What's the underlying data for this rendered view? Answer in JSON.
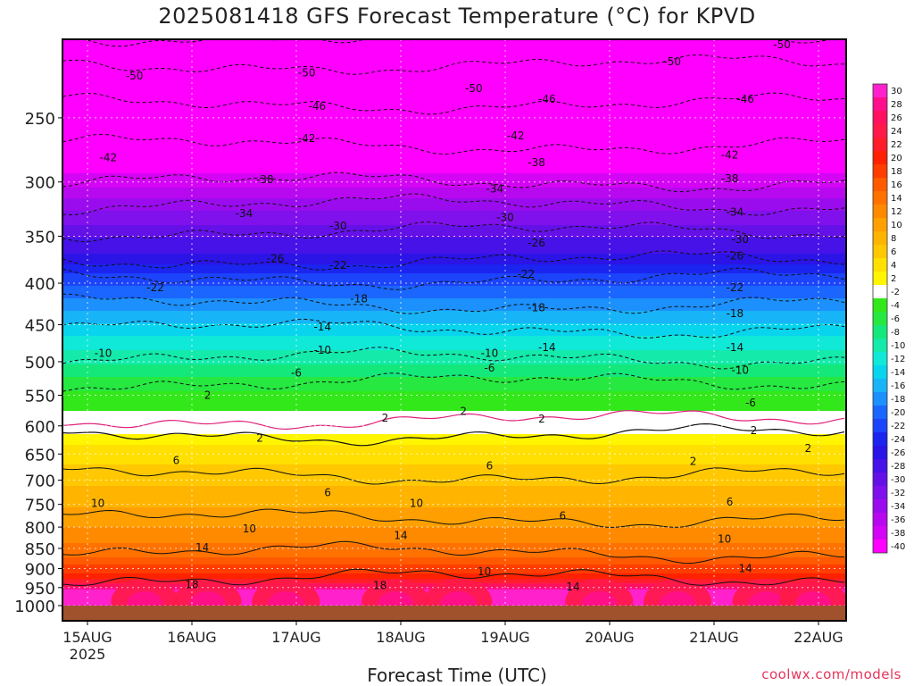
{
  "title": "2025081418 GFS Forecast Temperature (°C) for KPVD",
  "xlabel": "Forecast Time (UTC)",
  "credit": "coolwx.com/models",
  "chart_data": {
    "type": "heatmap",
    "title": "2025081418 GFS Forecast Temperature (°C) for KPVD",
    "xlabel": "Forecast Time (UTC)",
    "ylabel": "",
    "y_axis_scale": "log-pressure, inverted",
    "ylim": [
      1000,
      200
    ],
    "y_ticks": [
      250,
      300,
      350,
      400,
      450,
      500,
      550,
      600,
      650,
      700,
      750,
      800,
      850,
      900,
      950,
      1000
    ],
    "x_ticks": [
      "15AUG",
      "16AUG",
      "17AUG",
      "18AUG",
      "19AUG",
      "20AUG",
      "21AUG",
      "22AUG"
    ],
    "x_tick_sublabel": "2025",
    "grid": true,
    "colorbar_labels": [
      30,
      28,
      26,
      24,
      22,
      20,
      18,
      16,
      14,
      12,
      10,
      8,
      6,
      4,
      2,
      -2,
      -4,
      -6,
      -8,
      -10,
      -12,
      -14,
      -16,
      -18,
      -20,
      -22,
      -24,
      -26,
      -28,
      -30,
      -32,
      -34,
      -36,
      -38,
      -40
    ],
    "colorbar_colors": [
      "#ff22cc",
      "#ff0f8c",
      "#ff115f",
      "#ff1a49",
      "#ff1d2a",
      "#ff2200",
      "#ff3d00",
      "#ff5a00",
      "#ff7200",
      "#ff8a00",
      "#ffa000",
      "#ffb400",
      "#ffc800",
      "#ffe000",
      "#fff500",
      "#ffffff",
      "#33e81a",
      "#26e840",
      "#14e87a",
      "#14eaaa",
      "#10e8d8",
      "#08d4ee",
      "#18b4f8",
      "#1c90fc",
      "#1a66ff",
      "#1c44fa",
      "#1c24f0",
      "#2a14e6",
      "#4612e8",
      "#6411e8",
      "#8010ec",
      "#9a0cee",
      "#b808f0",
      "#d404f4",
      "#ff00ff"
    ],
    "isotherm_profile": [
      {
        "t": 30,
        "p": 960
      },
      {
        "t": 20,
        "p": 925
      },
      {
        "t": 14,
        "p": 860
      },
      {
        "t": 10,
        "p": 780
      },
      {
        "t": 6,
        "p": 690
      },
      {
        "t": 2,
        "p": 615
      },
      {
        "t": -2,
        "p": 590
      },
      {
        "t": -6,
        "p": 530
      },
      {
        "t": -10,
        "p": 495
      },
      {
        "t": -14,
        "p": 455
      },
      {
        "t": -18,
        "p": 425
      },
      {
        "t": -22,
        "p": 395
      },
      {
        "t": -26,
        "p": 375
      },
      {
        "t": -30,
        "p": 345
      },
      {
        "t": -34,
        "p": 320
      },
      {
        "t": -38,
        "p": 300
      },
      {
        "t": -42,
        "p": 270
      },
      {
        "t": -46,
        "p": 240
      },
      {
        "t": -50,
        "p": 215
      },
      {
        "t": -54,
        "p": 198
      }
    ],
    "contour_labels": [
      {
        "v": "-50",
        "day": 0.45,
        "p": 222
      },
      {
        "v": "-50",
        "day": 2.1,
        "p": 220
      },
      {
        "v": "-50",
        "day": 3.7,
        "p": 230
      },
      {
        "v": "-50",
        "day": 5.6,
        "p": 213
      },
      {
        "v": "-50",
        "day": 6.65,
        "p": 203
      },
      {
        "v": "-46",
        "day": 2.2,
        "p": 242
      },
      {
        "v": "-46",
        "day": 4.4,
        "p": 237
      },
      {
        "v": "-46",
        "day": 6.3,
        "p": 237
      },
      {
        "v": "-42",
        "day": 0.2,
        "p": 280
      },
      {
        "v": "-42",
        "day": 2.1,
        "p": 265
      },
      {
        "v": "-42",
        "day": 4.1,
        "p": 263
      },
      {
        "v": "-42",
        "day": 6.15,
        "p": 278
      },
      {
        "v": "-38",
        "day": 1.7,
        "p": 298
      },
      {
        "v": "-38",
        "day": 4.3,
        "p": 284
      },
      {
        "v": "-38",
        "day": 6.15,
        "p": 297
      },
      {
        "v": "-34",
        "day": 1.5,
        "p": 328
      },
      {
        "v": "-34",
        "day": 3.9,
        "p": 306
      },
      {
        "v": "-34",
        "day": 6.2,
        "p": 327
      },
      {
        "v": "-30",
        "day": 2.4,
        "p": 340
      },
      {
        "v": "-30",
        "day": 4.0,
        "p": 332
      },
      {
        "v": "-30",
        "day": 6.25,
        "p": 353
      },
      {
        "v": "-26",
        "day": 1.8,
        "p": 373
      },
      {
        "v": "-26",
        "day": 4.3,
        "p": 357
      },
      {
        "v": "-26",
        "day": 6.2,
        "p": 370
      },
      {
        "v": "-22",
        "day": 0.65,
        "p": 405
      },
      {
        "v": "-22",
        "day": 2.4,
        "p": 380
      },
      {
        "v": "-22",
        "day": 4.2,
        "p": 390
      },
      {
        "v": "-22",
        "day": 6.2,
        "p": 405
      },
      {
        "v": "-18",
        "day": 2.6,
        "p": 418
      },
      {
        "v": "-18",
        "day": 4.3,
        "p": 429
      },
      {
        "v": "-18",
        "day": 6.2,
        "p": 436
      },
      {
        "v": "-14",
        "day": 2.25,
        "p": 453
      },
      {
        "v": "-14",
        "day": 4.4,
        "p": 480
      },
      {
        "v": "-14",
        "day": 6.2,
        "p": 480
      },
      {
        "v": "-10",
        "day": 0.15,
        "p": 488
      },
      {
        "v": "-10",
        "day": 2.25,
        "p": 484
      },
      {
        "v": "-10",
        "day": 3.85,
        "p": 488
      },
      {
        "v": "-10",
        "day": 6.25,
        "p": 512
      },
      {
        "v": "-6",
        "day": 2.0,
        "p": 516
      },
      {
        "v": "-6",
        "day": 3.85,
        "p": 509
      },
      {
        "v": "-6",
        "day": 6.35,
        "p": 562
      },
      {
        "v": "2",
        "day": 1.15,
        "p": 550
      },
      {
        "v": "2",
        "day": 2.85,
        "p": 587
      },
      {
        "v": "2",
        "day": 3.6,
        "p": 576
      },
      {
        "v": "2",
        "day": 4.35,
        "p": 588
      },
      {
        "v": "2",
        "day": 6.38,
        "p": 608
      },
      {
        "v": "2",
        "day": 6.9,
        "p": 640
      },
      {
        "v": "2",
        "day": 1.65,
        "p": 621
      },
      {
        "v": "2",
        "day": 5.8,
        "p": 664
      },
      {
        "v": "6",
        "day": 0.85,
        "p": 662
      },
      {
        "v": "6",
        "day": 2.3,
        "p": 725
      },
      {
        "v": "6",
        "day": 3.85,
        "p": 672
      },
      {
        "v": "6",
        "day": 4.55,
        "p": 775
      },
      {
        "v": "6",
        "day": 6.15,
        "p": 745
      },
      {
        "v": "10",
        "day": 0.1,
        "p": 748
      },
      {
        "v": "10",
        "day": 1.55,
        "p": 804
      },
      {
        "v": "10",
        "day": 3.15,
        "p": 748
      },
      {
        "v": "10",
        "day": 3.8,
        "p": 908
      },
      {
        "v": "10",
        "day": 6.1,
        "p": 828
      },
      {
        "v": "14",
        "day": 1.1,
        "p": 848
      },
      {
        "v": "14",
        "day": 3.0,
        "p": 819
      },
      {
        "v": "14",
        "day": 4.65,
        "p": 948
      },
      {
        "v": "14",
        "day": 6.3,
        "p": 900
      },
      {
        "v": "18",
        "day": 1.0,
        "p": 942
      },
      {
        "v": "18",
        "day": 2.8,
        "p": 945
      }
    ]
  }
}
